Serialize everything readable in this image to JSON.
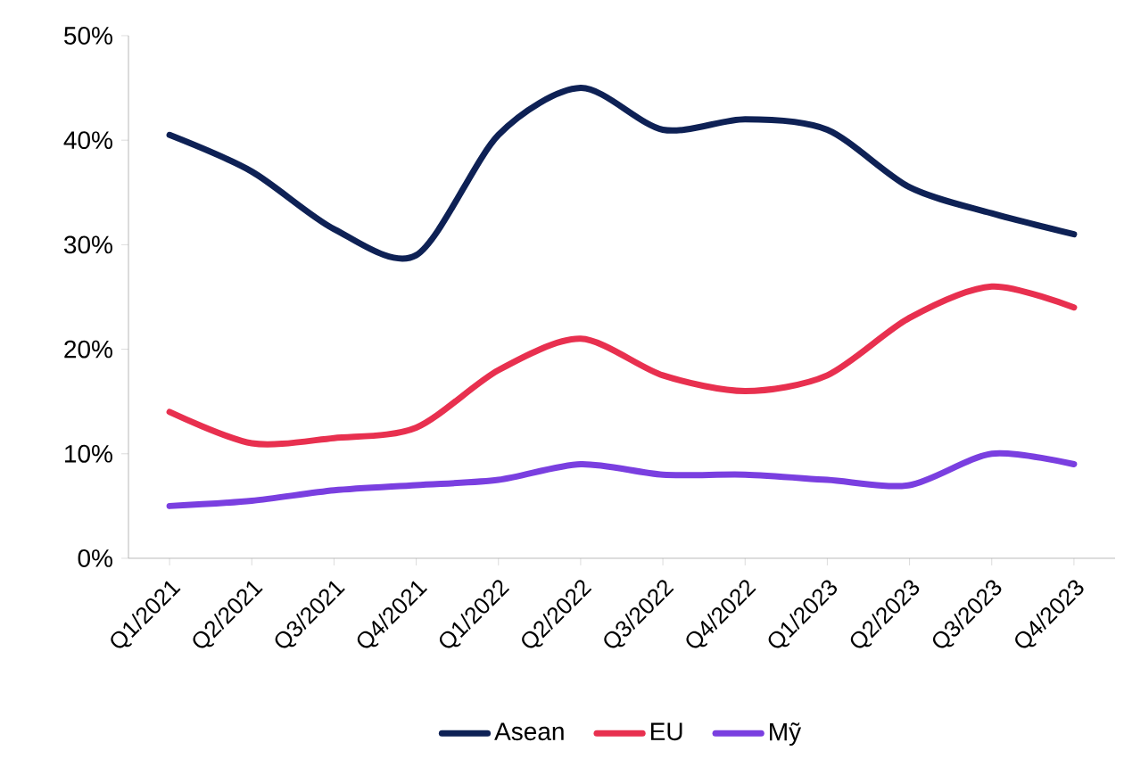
{
  "chart_data": {
    "type": "line",
    "categories": [
      "Q1/2021",
      "Q2/2021",
      "Q3/2021",
      "Q4/2021",
      "Q1/2022",
      "Q2/2022",
      "Q3/2022",
      "Q4/2022",
      "Q1/2023",
      "Q2/2023",
      "Q3/2023",
      "Q4/2023"
    ],
    "series": [
      {
        "name": "Asean",
        "color": "#0e2155",
        "values": [
          40.5,
          37,
          31.5,
          29,
          40.5,
          45,
          41,
          42,
          41,
          35.5,
          33,
          31
        ]
      },
      {
        "name": "EU",
        "color": "#e8304f",
        "values": [
          14,
          11,
          11.5,
          12.5,
          18,
          21,
          17.5,
          16,
          17.5,
          23,
          26,
          24
        ]
      },
      {
        "name": "Mỹ",
        "color": "#7a3fe0",
        "values": [
          5,
          5.5,
          6.5,
          7,
          7.5,
          9,
          8,
          8,
          7.5,
          7,
          10,
          9
        ]
      }
    ],
    "ylim": [
      0,
      50
    ],
    "yticks": [
      {
        "value": 0,
        "label": "0%"
      },
      {
        "value": 10,
        "label": "10%"
      },
      {
        "value": 20,
        "label": "20%"
      },
      {
        "value": 30,
        "label": "30%"
      },
      {
        "value": 40,
        "label": "40%"
      },
      {
        "value": 50,
        "label": "50%"
      }
    ],
    "grid": false,
    "legend": "bottom",
    "marker": "none",
    "line_style": "solid"
  }
}
